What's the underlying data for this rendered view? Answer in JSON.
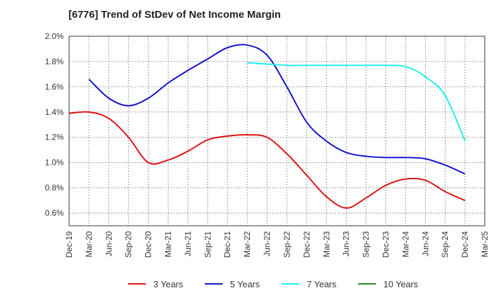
{
  "chart_data": {
    "type": "line",
    "title": "[6776]  Trend of StDev of Net Income Margin",
    "xlabel": "",
    "ylabel": "",
    "ylim": [
      0.5,
      2.0
    ],
    "y_ticks": [
      "0.6%",
      "0.8%",
      "1.0%",
      "1.2%",
      "1.4%",
      "1.6%",
      "1.8%",
      "2.0%"
    ],
    "y_tick_values": [
      0.6,
      0.8,
      1.0,
      1.2,
      1.4,
      1.6,
      1.8,
      2.0
    ],
    "x_ticks": [
      "Dec-19",
      "Mar-20",
      "Jun-20",
      "Sep-20",
      "Dec-20",
      "Mar-21",
      "Jun-21",
      "Sep-21",
      "Dec-21",
      "Mar-22",
      "Jun-22",
      "Sep-22",
      "Dec-22",
      "Mar-23",
      "Jun-23",
      "Sep-23",
      "Dec-23",
      "Mar-24",
      "Jun-24",
      "Sep-24",
      "Dec-24",
      "Mar-25"
    ],
    "grid": true,
    "legend_position": "bottom",
    "series": [
      {
        "name": "3 Years",
        "color": "#dd1111",
        "x": [
          "Dec-19",
          "Mar-20",
          "Jun-20",
          "Sep-20",
          "Dec-20",
          "Mar-21",
          "Jun-21",
          "Sep-21",
          "Dec-21",
          "Mar-22",
          "Jun-22",
          "Sep-22",
          "Dec-22",
          "Mar-23",
          "Jun-23",
          "Sep-23",
          "Dec-23",
          "Mar-24",
          "Jun-24",
          "Sep-24",
          "Dec-24"
        ],
        "values": [
          1.39,
          1.4,
          1.35,
          1.2,
          1.0,
          1.02,
          1.09,
          1.18,
          1.21,
          1.22,
          1.2,
          1.07,
          0.9,
          0.73,
          0.64,
          0.72,
          0.82,
          0.87,
          0.86,
          0.77,
          0.7
        ]
      },
      {
        "name": "5 Years",
        "color": "#1111cc",
        "x": [
          "Mar-20",
          "Jun-20",
          "Sep-20",
          "Dec-20",
          "Mar-21",
          "Jun-21",
          "Sep-21",
          "Dec-21",
          "Mar-22",
          "Jun-22",
          "Sep-22",
          "Dec-22",
          "Mar-23",
          "Jun-23",
          "Sep-23",
          "Dec-23",
          "Mar-24",
          "Jun-24",
          "Sep-24",
          "Dec-24"
        ],
        "values": [
          1.66,
          1.51,
          1.45,
          1.51,
          1.63,
          1.73,
          1.82,
          1.91,
          1.93,
          1.85,
          1.6,
          1.32,
          1.17,
          1.08,
          1.05,
          1.04,
          1.04,
          1.03,
          0.98,
          0.91
        ]
      },
      {
        "name": "7 Years",
        "color": "#22eeee",
        "x": [
          "Mar-22",
          "Jun-22",
          "Sep-22",
          "Dec-22",
          "Mar-23",
          "Jun-23",
          "Sep-23",
          "Dec-23",
          "Mar-24",
          "Jun-24",
          "Sep-24",
          "Dec-24"
        ],
        "values": [
          1.79,
          1.78,
          1.77,
          1.77,
          1.77,
          1.77,
          1.77,
          1.77,
          1.76,
          1.68,
          1.53,
          1.17
        ]
      },
      {
        "name": "10 Years",
        "color": "#228822",
        "x": [],
        "values": []
      }
    ]
  }
}
